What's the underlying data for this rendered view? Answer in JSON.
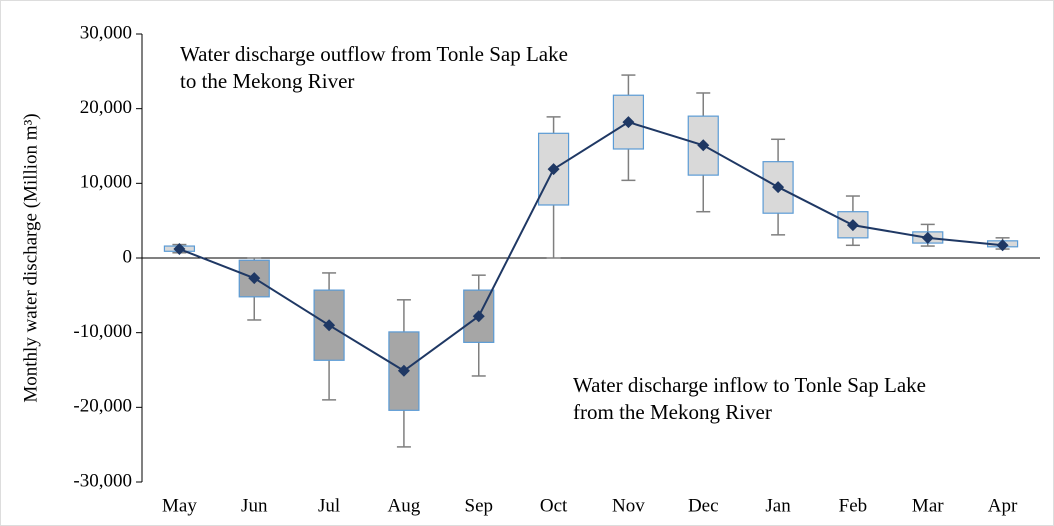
{
  "chart_data": {
    "type": "box",
    "y_label": "Monthly water discharge (Million m³)",
    "annotations": [
      {
        "lines": [
          "Water discharge outflow from Tonle Sap Lake",
          "to the Mekong River"
        ]
      },
      {
        "lines": [
          "Water discharge inflow to Tonle Sap Lake",
          "from the Mekong River"
        ]
      }
    ],
    "categories": [
      "May",
      "Jun",
      "Jul",
      "Aug",
      "Sep",
      "Oct",
      "Nov",
      "Dec",
      "Jan",
      "Feb",
      "Mar",
      "Apr"
    ],
    "min": [
      700,
      -8300,
      -19000,
      -25300,
      -15800,
      0,
      10400,
      6200,
      3100,
      1700,
      1600,
      1200
    ],
    "q1": [
      900,
      -5200,
      -13700,
      -20400,
      -11300,
      7100,
      14600,
      11100,
      6000,
      2700,
      2000,
      1500
    ],
    "q3": [
      1600,
      -300,
      -4300,
      -9900,
      -4300,
      16700,
      21800,
      19000,
      12900,
      6200,
      3500,
      2300
    ],
    "max": [
      1800,
      0,
      -2000,
      -5600,
      -2300,
      18900,
      24500,
      22100,
      15900,
      8300,
      4500,
      2700
    ],
    "mean": [
      1200,
      -2700,
      -9000,
      -15100,
      -7800,
      11900,
      18200,
      15100,
      9500,
      4400,
      2700,
      1700
    ],
    "box_colors": [
      "#d9d9d9",
      "#a6a6a6",
      "#a6a6a6",
      "#a6a6a6",
      "#a6a6a6",
      "#d9d9d9",
      "#d9d9d9",
      "#d9d9d9",
      "#d9d9d9",
      "#d9d9d9",
      "#d9d9d9",
      "#d9d9d9"
    ],
    "box_edge_color": "#5b9bd5",
    "whisker_color": "#7f7f7f",
    "mean_color": "#1f3864",
    "ylim": [
      -30000,
      30000
    ],
    "yticks": [
      {
        "value": -30000,
        "label": "-30,000"
      },
      {
        "value": -20000,
        "label": "-20,000"
      },
      {
        "value": -10000,
        "label": "-10,000"
      },
      0,
      {
        "value": 10000,
        "label": "10,000"
      },
      {
        "value": 20000,
        "label": "20,000"
      },
      {
        "value": 30000,
        "label": "30,000"
      }
    ]
  }
}
